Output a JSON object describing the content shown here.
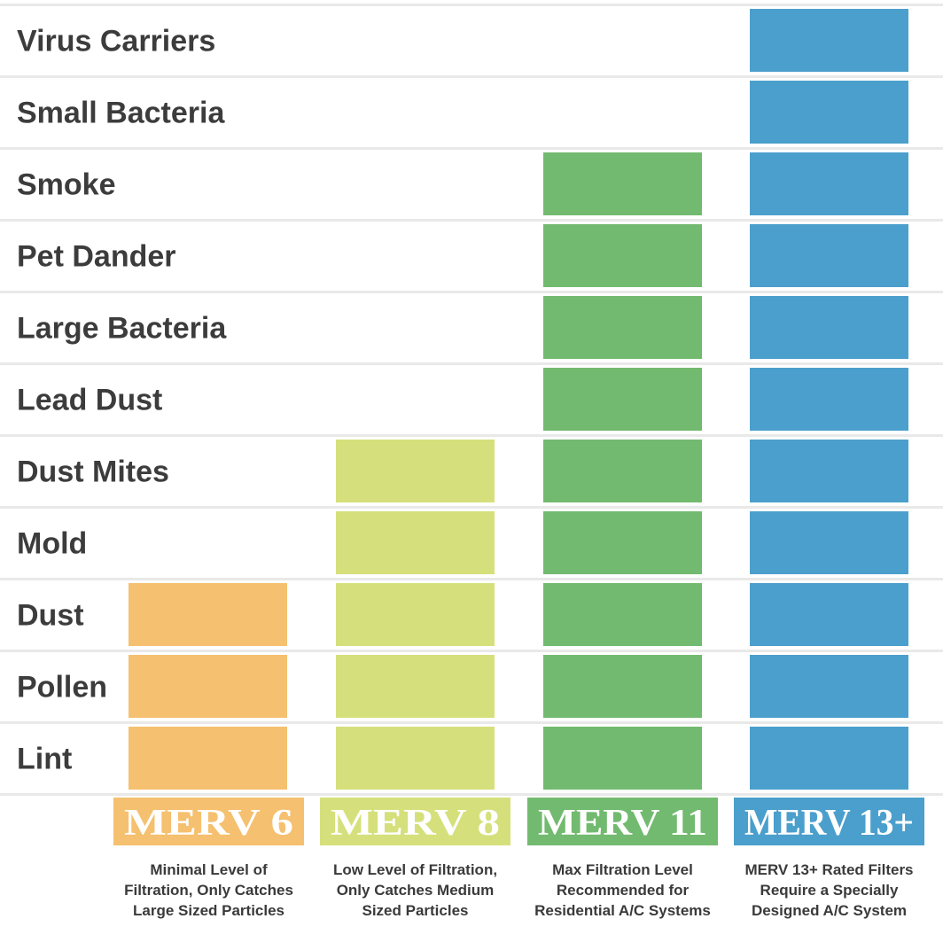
{
  "chart_data": {
    "type": "table",
    "rows": [
      "Virus Carriers",
      "Small Bacteria",
      "Smoke",
      "Pet Dander",
      "Large Bacteria",
      "Lead Dust",
      "Dust Mites",
      "Mold",
      "Dust",
      "Pollen",
      "Lint"
    ],
    "series": [
      {
        "name": "MERV 6",
        "color": "#f5c06f",
        "catches": [
          "Dust",
          "Pollen",
          "Lint"
        ],
        "description": [
          "Minimal Level of",
          "Filtration, Only Catches",
          "Large Sized Particles"
        ]
      },
      {
        "name": "MERV 8",
        "color": "#d5e07c",
        "catches": [
          "Dust Mites",
          "Mold",
          "Dust",
          "Pollen",
          "Lint"
        ],
        "description": [
          "Low Level of Filtration,",
          "Only Catches Medium",
          "Sized Particles"
        ]
      },
      {
        "name": "MERV 11",
        "color": "#72ba6f",
        "catches": [
          "Smoke",
          "Pet Dander",
          "Large Bacteria",
          "Lead Dust",
          "Dust Mites",
          "Mold",
          "Dust",
          "Pollen",
          "Lint"
        ],
        "description": [
          "Max Filtration Level",
          "Recommended for",
          "Residential A/C Systems"
        ]
      },
      {
        "name": "MERV 13+",
        "color": "#4b9fcc",
        "catches": [
          "Virus Carriers",
          "Small Bacteria",
          "Smoke",
          "Pet Dander",
          "Large Bacteria",
          "Lead Dust",
          "Dust Mites",
          "Mold",
          "Dust",
          "Pollen",
          "Lint"
        ],
        "description": [
          "MERV 13+ Rated Filters",
          "Require a Specially",
          "Designed A/C System"
        ]
      }
    ],
    "grid": true
  }
}
